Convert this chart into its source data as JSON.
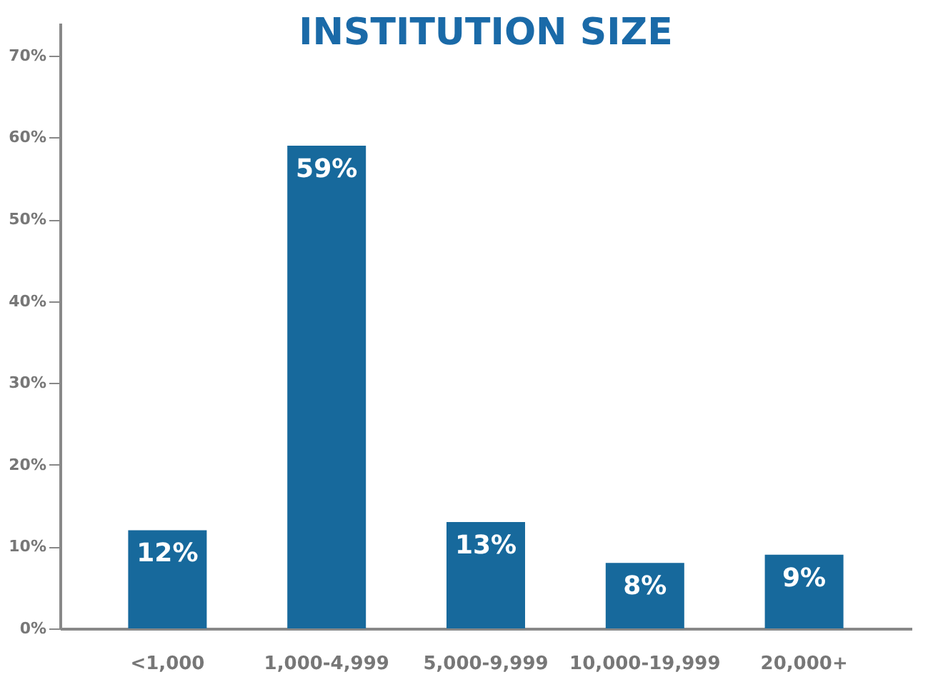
{
  "chart_data": {
    "type": "bar",
    "title": "INSTITUTION SIZE",
    "categories": [
      "<1,000",
      "1,000-4,999",
      "5,000-9,999",
      "10,000-19,999",
      "20,000+"
    ],
    "values": [
      12,
      59,
      13,
      8,
      9
    ],
    "value_labels": [
      "12%",
      "59%",
      "13%",
      "8%",
      "9%"
    ],
    "color": "#17699c",
    "ylim": [
      0,
      74
    ],
    "yticks": [
      {
        "value": 0,
        "label": "0%"
      },
      {
        "value": 10,
        "label": "10%"
      },
      {
        "value": 20,
        "label": "20%"
      },
      {
        "value": 30,
        "label": "30%"
      },
      {
        "value": 40,
        "label": "40%"
      },
      {
        "value": 50,
        "label": "50%"
      },
      {
        "value": 60,
        "label": "60%"
      },
      {
        "value": 70,
        "label": "70%"
      }
    ],
    "grid": false
  }
}
